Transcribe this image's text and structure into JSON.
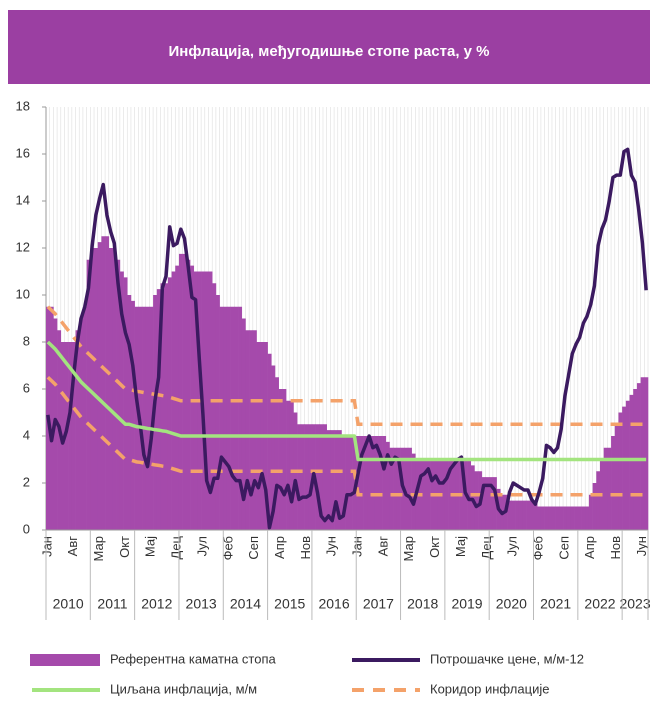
{
  "chart_data": {
    "type": "bar_line",
    "title": "Инфлација, међугодишње стопе раста, у %",
    "categories": [
      "Јан",
      null,
      null,
      null,
      null,
      null,
      null,
      "Авг",
      null,
      null,
      null,
      null,
      null,
      null,
      "Мар",
      null,
      null,
      null,
      null,
      null,
      null,
      "Окт",
      null,
      null,
      null,
      null,
      null,
      null,
      "Мај",
      null,
      null,
      null,
      null,
      null,
      null,
      "Дец",
      null,
      null,
      null,
      null,
      null,
      null,
      "Јул",
      null,
      null,
      null,
      null,
      null,
      null,
      "Феб",
      null,
      null,
      null,
      null,
      null,
      null,
      "Сеп",
      null,
      null,
      null,
      null,
      null,
      null,
      "Апр",
      null,
      null,
      null,
      null,
      null,
      null,
      "Нов",
      null,
      null,
      null,
      null,
      null,
      null,
      "Јун",
      null,
      null,
      null,
      null,
      null,
      null,
      "Јан",
      null,
      null,
      null,
      null,
      null,
      null,
      "Авг",
      null,
      null,
      null,
      null,
      null,
      null,
      "Мар",
      null,
      null,
      null,
      null,
      null,
      null,
      "Окт",
      null,
      null,
      null,
      null,
      null,
      null,
      "Мај",
      null,
      null,
      null,
      null,
      null,
      null,
      "Дец",
      null,
      null,
      null,
      null,
      null,
      null,
      "Јул",
      null,
      null,
      null,
      null,
      null,
      null,
      "Феб",
      null,
      null,
      null,
      null,
      null,
      null,
      "Сеп",
      null,
      null,
      null,
      null,
      null,
      null,
      "Апр",
      null,
      null,
      null,
      null,
      null,
      null,
      "Нов",
      null,
      null,
      null,
      null,
      null,
      null,
      "Јун",
      null
    ],
    "years": [
      "2010",
      "2011",
      "2012",
      "2013",
      "2014",
      "2015",
      "2016",
      "2017",
      "2018",
      "2019",
      "2020",
      "2021",
      "2022",
      "2023"
    ],
    "ylim": [
      0,
      18
    ],
    "yticks": [
      0,
      2,
      4,
      6,
      8,
      10,
      12,
      14,
      16,
      18
    ],
    "series": [
      {
        "name": "Референтна каматна стопа",
        "color": "#a54aab",
        "type": "bar",
        "values": [
          9.5,
          9.5,
          9,
          8.5,
          8,
          8,
          8,
          8,
          8.5,
          9,
          9.5,
          11.5,
          12,
          12,
          12.25,
          12.5,
          12.5,
          12,
          12,
          11.5,
          11,
          10.75,
          10,
          9.75,
          9.5,
          9.5,
          9.5,
          9.5,
          9.5,
          10,
          10.25,
          10.5,
          10.5,
          10.75,
          11,
          11.25,
          11.75,
          11.75,
          11.5,
          11.25,
          11,
          11,
          11,
          11,
          11,
          10.5,
          10,
          9.5,
          9.5,
          9.5,
          9.5,
          9.5,
          9.5,
          9,
          8.5,
          8.5,
          8.5,
          8,
          8,
          8,
          7.5,
          7,
          6.5,
          6,
          6,
          5.5,
          5.5,
          5,
          4.5,
          4.5,
          4.5,
          4.5,
          4.5,
          4.5,
          4.5,
          4.5,
          4.25,
          4.25,
          4.25,
          4.25,
          4,
          4,
          4,
          4,
          4,
          4,
          4,
          4,
          4,
          4,
          4,
          4,
          3.75,
          3.5,
          3.5,
          3.5,
          3.5,
          3.5,
          3.5,
          3.25,
          3,
          3,
          3,
          3,
          3,
          3,
          3,
          3,
          3,
          3,
          3,
          3,
          3,
          3,
          3,
          2.75,
          2.5,
          2.5,
          2.25,
          2.25,
          2.25,
          2.25,
          1.75,
          1.5,
          1.5,
          1.25,
          1.25,
          1.25,
          1.25,
          1.25,
          1.25,
          1.25,
          1.25,
          1,
          1,
          1,
          1,
          1,
          1,
          1,
          1,
          1,
          1,
          1,
          1,
          1,
          1,
          1.5,
          2,
          2.5,
          3,
          3.5,
          3.5,
          4,
          4.5,
          5,
          5.25,
          5.5,
          5.75,
          6,
          6.25,
          6.5,
          6.5
        ]
      },
      {
        "name": "Потрошачке цене, м/м-12",
        "color": "#3b1a60",
        "type": "line",
        "values": [
          4.9,
          3.8,
          4.7,
          4.4,
          3.7,
          4.2,
          5,
          6.6,
          8,
          9,
          9.5,
          10.3,
          12.1,
          13.4,
          14.1,
          14.7,
          13.4,
          12.7,
          12.2,
          10.5,
          9.2,
          8.4,
          7.9,
          7,
          5.6,
          4.5,
          3.2,
          2.7,
          3.9,
          5.5,
          6.5,
          10.3,
          10.8,
          12.9,
          12.1,
          12.2,
          12.8,
          12.4,
          11.2,
          9.9,
          9.8,
          7.3,
          4.9,
          2.1,
          1.6,
          2.2,
          2.2,
          3.1,
          2.9,
          2.7,
          2.3,
          2.1,
          2.1,
          1.3,
          2.1,
          1.5,
          2.1,
          1.8,
          2.4,
          1.7,
          0.1,
          0.8,
          1.9,
          1.8,
          1.5,
          1.9,
          1.2,
          2.1,
          1.3,
          1.4,
          1.4,
          1.5,
          2.4,
          1.6,
          0.6,
          0.4,
          0.6,
          0.4,
          1.2,
          0.5,
          0.6,
          1.5,
          1.5,
          1.6,
          2.4,
          3.2,
          3.6,
          4,
          3.5,
          3.6,
          3.2,
          2.6,
          3.2,
          2.8,
          3.1,
          3,
          1.9,
          1.5,
          1.4,
          1.1,
          1.7,
          2.3,
          2.4,
          2.6,
          2.1,
          2.3,
          2,
          2,
          2.2,
          2.6,
          2.8,
          3,
          3.1,
          1.6,
          1.3,
          1.3,
          1,
          1.1,
          1.9,
          1.9,
          1.9,
          1.7,
          0.9,
          0.7,
          0.8,
          1.6,
          2,
          1.9,
          1.8,
          1.7,
          1.7,
          1.3,
          1.1,
          1.6,
          2.2,
          3.6,
          3.5,
          3.3,
          3.5,
          4.3,
          5.7,
          6.6,
          7.5,
          7.9,
          8.2,
          8.8,
          9.1,
          9.6,
          10.4,
          12.1,
          12.8,
          13.2,
          14,
          15,
          15.1,
          15.1,
          16.1,
          16.2,
          15.1,
          14.8,
          13.6,
          12.2,
          10.2
        ]
      },
      {
        "name": "Циљана инфлација, м/м",
        "color": "#a3e47f",
        "type": "line",
        "values": [
          8,
          7.85,
          7.7,
          7.5,
          7.3,
          7.1,
          6.9,
          6.7,
          6.5,
          6.3,
          6.15,
          6,
          5.85,
          5.7,
          5.55,
          5.4,
          5.25,
          5.1,
          4.95,
          4.8,
          4.65,
          4.5,
          4.5,
          4.45,
          4.4,
          4.38,
          4.35,
          4.32,
          4.3,
          4.27,
          4.25,
          4.22,
          4.2,
          4.15,
          4.1,
          4.05,
          4,
          4,
          4,
          4,
          4,
          4,
          4,
          4,
          4,
          4,
          4,
          4,
          4,
          4,
          4,
          4,
          4,
          4,
          4,
          4,
          4,
          4,
          4,
          4,
          4,
          4,
          4,
          4,
          4,
          4,
          4,
          4,
          4,
          4,
          4,
          4,
          4,
          4,
          4,
          4,
          4,
          4,
          4,
          4,
          4,
          4,
          4,
          4,
          3,
          3,
          3,
          3,
          3,
          3,
          3,
          3,
          3,
          3,
          3,
          3,
          3,
          3,
          3,
          3,
          3,
          3,
          3,
          3,
          3,
          3,
          3,
          3,
          3,
          3,
          3,
          3,
          3,
          3,
          3,
          3,
          3,
          3,
          3,
          3,
          3,
          3,
          3,
          3,
          3,
          3,
          3,
          3,
          3,
          3,
          3,
          3,
          3,
          3,
          3,
          3,
          3,
          3,
          3,
          3,
          3,
          3,
          3,
          3,
          3,
          3,
          3,
          3,
          3,
          3,
          3,
          3,
          3,
          3,
          3,
          3,
          3,
          3,
          3,
          3,
          3,
          3,
          3
        ]
      },
      {
        "name": "Коридор инфлације",
        "color": "#f4a26a",
        "type": "dashed",
        "upper": [
          9.5,
          9.35,
          9.2,
          9,
          8.8,
          8.6,
          8.4,
          8.2,
          8,
          7.8,
          7.65,
          7.5,
          7.35,
          7.2,
          7.05,
          6.9,
          6.75,
          6.6,
          6.45,
          6.3,
          6.15,
          6,
          6,
          5.95,
          5.9,
          5.88,
          5.85,
          5.82,
          5.8,
          5.77,
          5.75,
          5.72,
          5.7,
          5.65,
          5.6,
          5.55,
          5.5,
          5.5,
          5.5,
          5.5,
          5.5,
          5.5,
          5.5,
          5.5,
          5.5,
          5.5,
          5.5,
          5.5,
          5.5,
          5.5,
          5.5,
          5.5,
          5.5,
          5.5,
          5.5,
          5.5,
          5.5,
          5.5,
          5.5,
          5.5,
          5.5,
          5.5,
          5.5,
          5.5,
          5.5,
          5.5,
          5.5,
          5.5,
          5.5,
          5.5,
          5.5,
          5.5,
          5.5,
          5.5,
          5.5,
          5.5,
          5.5,
          5.5,
          5.5,
          5.5,
          5.5,
          5.5,
          5.5,
          5.5,
          4.5,
          4.5,
          4.5,
          4.5,
          4.5,
          4.5,
          4.5,
          4.5,
          4.5,
          4.5,
          4.5,
          4.5,
          4.5,
          4.5,
          4.5,
          4.5,
          4.5,
          4.5,
          4.5,
          4.5,
          4.5,
          4.5,
          4.5,
          4.5,
          4.5,
          4.5,
          4.5,
          4.5,
          4.5,
          4.5,
          4.5,
          4.5,
          4.5,
          4.5,
          4.5,
          4.5,
          4.5,
          4.5,
          4.5,
          4.5,
          4.5,
          4.5,
          4.5,
          4.5,
          4.5,
          4.5,
          4.5,
          4.5,
          4.5,
          4.5,
          4.5,
          4.5,
          4.5,
          4.5,
          4.5,
          4.5,
          4.5,
          4.5,
          4.5,
          4.5,
          4.5,
          4.5,
          4.5,
          4.5,
          4.5,
          4.5,
          4.5,
          4.5,
          4.5,
          4.5,
          4.5,
          4.5,
          4.5,
          4.5,
          4.5,
          4.5,
          4.5,
          4.5,
          4.5
        ],
        "lower": [
          6.5,
          6.35,
          6.2,
          6,
          5.8,
          5.6,
          5.4,
          5.2,
          5,
          4.8,
          4.65,
          4.5,
          4.35,
          4.2,
          4.05,
          3.9,
          3.75,
          3.6,
          3.45,
          3.3,
          3.15,
          3,
          3,
          2.95,
          2.9,
          2.88,
          2.85,
          2.82,
          2.8,
          2.77,
          2.75,
          2.72,
          2.7,
          2.65,
          2.6,
          2.55,
          2.5,
          2.5,
          2.5,
          2.5,
          2.5,
          2.5,
          2.5,
          2.5,
          2.5,
          2.5,
          2.5,
          2.5,
          2.5,
          2.5,
          2.5,
          2.5,
          2.5,
          2.5,
          2.5,
          2.5,
          2.5,
          2.5,
          2.5,
          2.5,
          2.5,
          2.5,
          2.5,
          2.5,
          2.5,
          2.5,
          2.5,
          2.5,
          2.5,
          2.5,
          2.5,
          2.5,
          2.5,
          2.5,
          2.5,
          2.5,
          2.5,
          2.5,
          2.5,
          2.5,
          2.5,
          2.5,
          2.5,
          2.5,
          1.5,
          1.5,
          1.5,
          1.5,
          1.5,
          1.5,
          1.5,
          1.5,
          1.5,
          1.5,
          1.5,
          1.5,
          1.5,
          1.5,
          1.5,
          1.5,
          1.5,
          1.5,
          1.5,
          1.5,
          1.5,
          1.5,
          1.5,
          1.5,
          1.5,
          1.5,
          1.5,
          1.5,
          1.5,
          1.5,
          1.5,
          1.5,
          1.5,
          1.5,
          1.5,
          1.5,
          1.5,
          1.5,
          1.5,
          1.5,
          1.5,
          1.5,
          1.5,
          1.5,
          1.5,
          1.5,
          1.5,
          1.5,
          1.5,
          1.5,
          1.5,
          1.5,
          1.5,
          1.5,
          1.5,
          1.5,
          1.5,
          1.5,
          1.5,
          1.5,
          1.5,
          1.5,
          1.5,
          1.5,
          1.5,
          1.5,
          1.5,
          1.5,
          1.5,
          1.5,
          1.5,
          1.5,
          1.5,
          1.5,
          1.5,
          1.5,
          1.5,
          1.5,
          1.5
        ]
      }
    ]
  }
}
